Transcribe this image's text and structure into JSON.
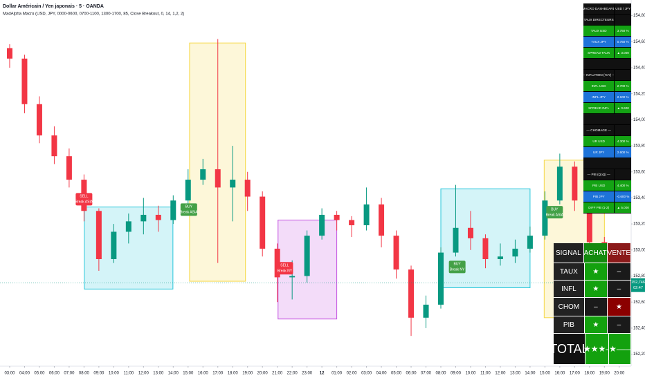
{
  "chart_data": {
    "type": "candlestick",
    "title": "Dollar Américain / Yen japonais · 5 · OANDA",
    "subtitle": "MadAlpha Macro (USD, JPY, 0000-0600, 0700-1100, 1300-1700, 85, Close Breakout, 0, 14, 1,2, 2)",
    "x": [
      0,
      1,
      2,
      3,
      4,
      5,
      6,
      7,
      8,
      9,
      10,
      11,
      12,
      13,
      14,
      15,
      16,
      17,
      18,
      19,
      20,
      21,
      22,
      23,
      24,
      25,
      26,
      27,
      28,
      29,
      30,
      31,
      32,
      33,
      34,
      35,
      36,
      37,
      38,
      39,
      40,
      41
    ],
    "series": [
      {
        "up_color": "#089981",
        "down_color": "#f23645",
        "open": [
          154.55,
          154.47,
          154.12,
          153.88,
          153.72,
          153.54,
          153.3,
          152.93,
          153.14,
          153.22,
          153.27,
          153.23,
          153.38,
          153.54,
          153.62,
          153.48,
          153.54,
          153.41,
          153.01,
          152.79,
          152.8,
          153.11,
          153.27,
          153.23,
          153.19,
          153.35,
          153.11,
          152.85,
          152.48,
          152.58,
          152.98,
          153.17,
          153.09,
          152.93,
          152.95,
          153.01,
          153.11,
          153.38,
          153.64,
          153.38,
          153.06,
          152.69
        ],
        "high": [
          154.58,
          154.5,
          154.18,
          153.95,
          153.78,
          153.58,
          153.32,
          153.2,
          153.28,
          153.4,
          153.34,
          153.42,
          153.62,
          153.7,
          154.62,
          153.8,
          153.6,
          153.45,
          153.05,
          152.92,
          153.15,
          153.32,
          153.3,
          153.26,
          153.48,
          153.4,
          153.15,
          152.88,
          152.65,
          153.02,
          153.5,
          153.3,
          153.12,
          153.05,
          153.08,
          153.18,
          153.45,
          153.74,
          153.68,
          153.42,
          153.1,
          152.85
        ],
        "low": [
          154.4,
          154.05,
          153.82,
          153.66,
          153.48,
          153.22,
          152.84,
          152.9,
          153.05,
          153.12,
          153.14,
          153.2,
          153.34,
          153.5,
          152.9,
          153.22,
          153.3,
          152.95,
          152.6,
          152.62,
          152.75,
          153.08,
          153.15,
          153.1,
          153.15,
          153.02,
          152.78,
          152.34,
          152.4,
          152.55,
          152.95,
          153.0,
          152.86,
          152.88,
          152.9,
          152.98,
          153.08,
          153.35,
          153.3,
          152.98,
          152.55,
          152.52
        ],
        "close": [
          154.47,
          154.12,
          153.88,
          153.72,
          153.54,
          153.3,
          152.93,
          153.14,
          153.22,
          153.27,
          153.23,
          153.38,
          153.54,
          153.62,
          153.48,
          153.54,
          153.41,
          153.01,
          152.79,
          152.8,
          153.11,
          153.27,
          153.23,
          153.19,
          153.35,
          153.11,
          152.85,
          152.48,
          152.58,
          152.98,
          153.17,
          153.09,
          152.93,
          152.95,
          153.01,
          153.11,
          153.38,
          153.64,
          153.38,
          153.06,
          152.69,
          152.75
        ]
      }
    ],
    "xlim": [
      -0.65,
      41.8
    ],
    "xticks": [
      {
        "value": 0,
        "label": "03:00"
      },
      {
        "value": 1,
        "label": "04:00"
      },
      {
        "value": 2,
        "label": "05:00"
      },
      {
        "value": 3,
        "label": "06:00"
      },
      {
        "value": 4,
        "label": "07:00"
      },
      {
        "value": 5,
        "label": "08:00"
      },
      {
        "value": 6,
        "label": "09:00"
      },
      {
        "value": 7,
        "label": "10:00"
      },
      {
        "value": 8,
        "label": "11:00"
      },
      {
        "value": 9,
        "label": "12:00"
      },
      {
        "value": 10,
        "label": "13:00"
      },
      {
        "value": 11,
        "label": "14:00"
      },
      {
        "value": 12,
        "label": "15:00"
      },
      {
        "value": 13,
        "label": "16:00"
      },
      {
        "value": 14,
        "label": "17:00"
      },
      {
        "value": 15,
        "label": "18:00"
      },
      {
        "value": 16,
        "label": "19:00"
      },
      {
        "value": 17,
        "label": "20:00"
      },
      {
        "value": 18,
        "label": "21:00"
      },
      {
        "value": 19,
        "label": "22:00"
      },
      {
        "value": 20,
        "label": "23:00"
      },
      {
        "value": 21,
        "label": "12"
      },
      {
        "value": 22,
        "label": "01:00"
      },
      {
        "value": 23,
        "label": "02:00"
      },
      {
        "value": 24,
        "label": "03:00"
      },
      {
        "value": 25,
        "label": "04:00"
      },
      {
        "value": 26,
        "label": "05:00"
      },
      {
        "value": 27,
        "label": "06:00"
      },
      {
        "value": 28,
        "label": "07:00"
      },
      {
        "value": 29,
        "label": "08:00"
      },
      {
        "value": 30,
        "label": "09:00"
      },
      {
        "value": 31,
        "label": "10:00"
      },
      {
        "value": 32,
        "label": "11:00"
      },
      {
        "value": 33,
        "label": "12:00"
      },
      {
        "value": 34,
        "label": "13:00"
      },
      {
        "value": 35,
        "label": "14:00"
      },
      {
        "value": 36,
        "label": "15:00"
      },
      {
        "value": 37,
        "label": "16:00"
      },
      {
        "value": 38,
        "label": "17:00"
      },
      {
        "value": 39,
        "label": "18:00"
      },
      {
        "value": 40,
        "label": "19:00"
      },
      {
        "value": 41,
        "label": "20:00"
      }
    ],
    "ylim": [
      152.15,
      154.92
    ],
    "yticks": [
      {
        "value": 152.2,
        "label": "152,200"
      },
      {
        "value": 152.4,
        "label": "152,400"
      },
      {
        "value": 152.6,
        "label": "152,600"
      },
      {
        "value": 152.8,
        "label": "152,800"
      },
      {
        "value": 153.0,
        "label": "153,000"
      },
      {
        "value": 153.2,
        "label": "153,200"
      },
      {
        "value": 153.4,
        "label": "153,400"
      },
      {
        "value": 153.6,
        "label": "153,600"
      },
      {
        "value": 153.8,
        "label": "153,800"
      },
      {
        "value": 154.0,
        "label": "154,000"
      },
      {
        "value": 154.2,
        "label": "154,200"
      },
      {
        "value": 154.4,
        "label": "154,400"
      },
      {
        "value": 154.6,
        "label": "154,600"
      },
      {
        "value": 154.8,
        "label": "154,800"
      }
    ],
    "grid": false,
    "zones": [
      {
        "x": [
          5.02,
          10.98
        ],
        "high": 153.33,
        "low": 152.7,
        "color": "#26c6da"
      },
      {
        "x": [
          12.1,
          15.86
        ],
        "high": 154.59,
        "low": 152.76,
        "color": "#f5d742"
      },
      {
        "x": [
          18.05,
          22.0
        ],
        "high": 153.23,
        "low": 152.47,
        "color": "#c24ee0"
      },
      {
        "x": [
          29.0,
          35.0
        ],
        "high": 153.47,
        "low": 152.71,
        "color": "#26c6da"
      },
      {
        "x": [
          35.95,
          40.0
        ],
        "high": 153.69,
        "low": 152.48,
        "color": "#f5d742"
      }
    ],
    "annotations": [
      {
        "text": "SELL",
        "subtext": "Break ASIA",
        "x": 5.0,
        "y": 153.39,
        "color": "#f23645"
      },
      {
        "text": "BUY",
        "subtext": "Break ASIA",
        "x": 12.05,
        "y": 153.31,
        "color": "#43a047"
      },
      {
        "text": "SELL",
        "subtext": "Break NY",
        "x": 18.5,
        "y": 152.86,
        "color": "#f23645"
      },
      {
        "text": "BUY",
        "subtext": "Break NY",
        "x": 30.1,
        "y": 152.87,
        "color": "#43a047"
      },
      {
        "text": "BUY",
        "subtext": "Break ASIA",
        "x": 36.65,
        "y": 153.29,
        "color": "#43a047"
      }
    ],
    "last_price": {
      "value": 152.746,
      "label": "152,746",
      "countdown": "02:47",
      "symbol": "USDJPY",
      "color": "#089981"
    }
  },
  "dashboard": {
    "header": [
      "MACRO DASHBOARD",
      "USD / JPY"
    ],
    "sections": [
      {
        "title": "— TAUX DIRECTEURS —",
        "rows": [
          [
            "TAUX USD",
            "3.750 %"
          ],
          [
            "TAUX JPY",
            "0.750 %"
          ],
          [
            "SPREAD TAUX",
            "▲ 3.000"
          ]
        ]
      },
      {
        "title": "— INFLATION (YoY) —",
        "rows": [
          [
            "INFL USD",
            "2.700 %"
          ],
          [
            "INFL JPY",
            "2.100 %"
          ],
          [
            "SPREAD INFL",
            "▲ 0.600"
          ]
        ]
      },
      {
        "title": "— CHOMAGE —",
        "rows": [
          [
            "UR USD",
            "4.300 %"
          ],
          [
            "UR JPY",
            "2.600 %"
          ]
        ]
      },
      {
        "title": "— PIB (QoQ) —",
        "rows": [
          [
            "PIB USD",
            "4.400 %"
          ],
          [
            "PIB JPY",
            "-0.600 %"
          ],
          [
            "DIFF PIB (1-2)",
            "▲ 5.000"
          ]
        ]
      }
    ]
  },
  "signal_table": {
    "header": [
      "SIGNAL",
      "ACHAT",
      "VENTE"
    ],
    "rows": [
      [
        "TAUX",
        "★",
        "–"
      ],
      [
        "INFL",
        "★",
        "–"
      ],
      [
        "CHOM",
        "–",
        "★"
      ],
      [
        "PIB",
        "★",
        "–"
      ]
    ],
    "total": [
      "TOTAL",
      "★★★–",
      "★–––"
    ]
  }
}
